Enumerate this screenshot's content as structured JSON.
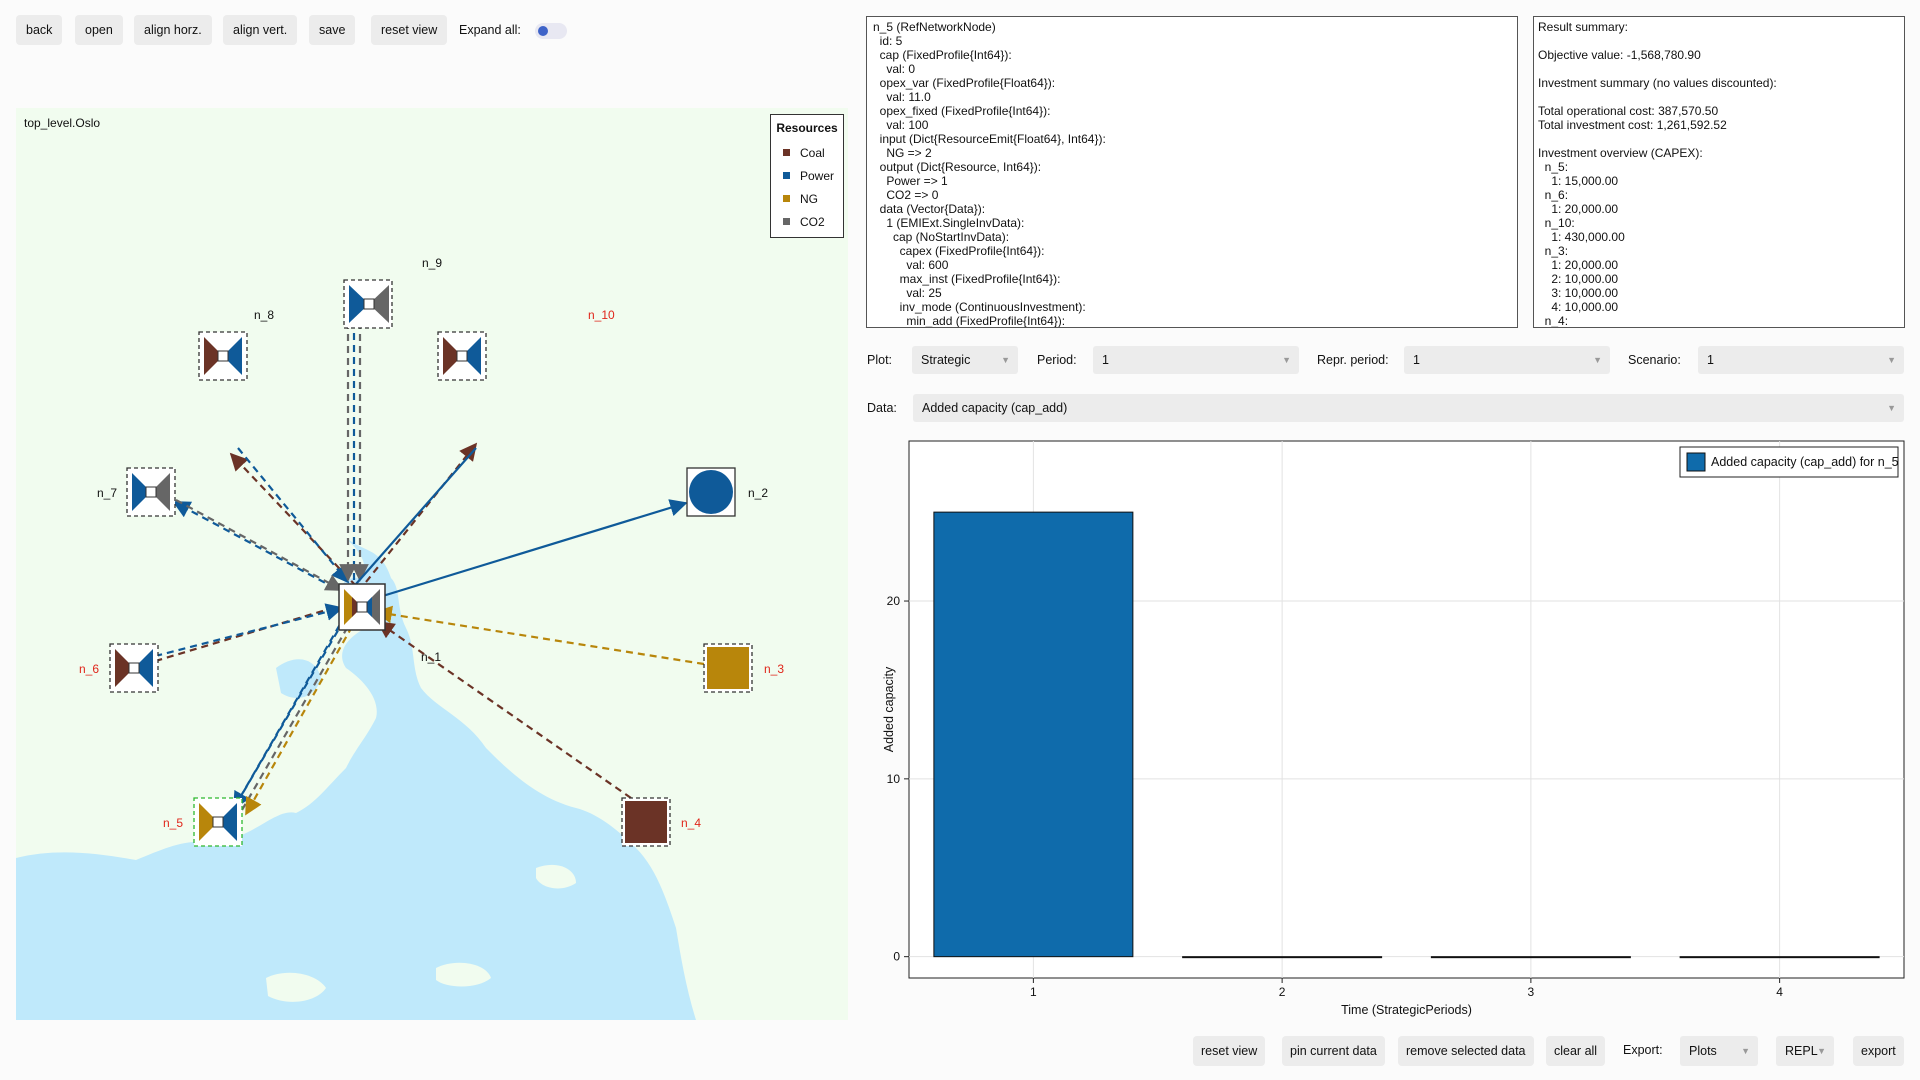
{
  "toolbar": {
    "back": "back",
    "open": "open",
    "align_horz": "align horz.",
    "align_vert": "align vert.",
    "save": "save",
    "reset_view": "reset view",
    "expand_all_label": "Expand all:",
    "expand_all_on": false
  },
  "map": {
    "title": "top_level.Oslo",
    "legend": {
      "title": "Resources",
      "items": [
        {
          "label": "Coal",
          "color": "#6b3326"
        },
        {
          "label": "Power",
          "color": "#0f5a99"
        },
        {
          "label": "NG",
          "color": "#b8860b"
        },
        {
          "label": "CO2",
          "color": "#666666"
        }
      ]
    },
    "nodes": {
      "n_1": "n_1",
      "n_2": "n_2",
      "n_3": "n_3",
      "n_4": "n_4",
      "n_5": "n_5",
      "n_6": "n_6",
      "n_7": "n_7",
      "n_8": "n_8",
      "n_9": "n_9",
      "n_10": "n_10"
    },
    "colors": {
      "coal": "#6b3326",
      "power": "#0f5a99",
      "ng": "#b8860b",
      "co2": "#666666",
      "land": "#f1fcef",
      "water": "#bfe9fb",
      "label_red": "#e0261b"
    }
  },
  "info": {
    "lines": [
      "n_5 (RefNetworkNode)",
      "  id: 5",
      "  cap (FixedProfile{Int64}):",
      "    val: 0",
      "  opex_var (FixedProfile{Float64}):",
      "    val: 11.0",
      "  opex_fixed (FixedProfile{Int64}):",
      "    val: 100",
      "  input (Dict{ResourceEmit{Float64}, Int64}):",
      "    NG => 2",
      "  output (Dict{Resource, Int64}):",
      "    Power => 1",
      "    CO2 => 0",
      "  data (Vector{Data}):",
      "    1 (EMIExt.SingleInvData):",
      "      cap (NoStartInvData):",
      "        capex (FixedProfile{Int64}):",
      "          val: 600",
      "        max_inst (FixedProfile{Int64}):",
      "          val: 25",
      "        inv_mode (ContinuousInvestment):",
      "          min_add (FixedProfile{Int64}):"
    ]
  },
  "summary": {
    "lines": [
      "Result summary:",
      "",
      "Objective value: -1,568,780.90",
      "",
      "Investment summary (no values discounted):",
      "",
      "Total operational cost: 387,570.50",
      "Total investment cost: 1,261,592.52",
      "",
      "Investment overview (CAPEX):",
      "  n_5:",
      "    1: 15,000.00",
      "  n_6:",
      "    1: 20,000.00",
      "  n_10:",
      "    1: 430,000.00",
      "  n_3:",
      "    1: 20,000.00",
      "    2: 10,000.00",
      "    3: 10,000.00",
      "    4: 10,000.00",
      "  n_4:"
    ]
  },
  "controls": {
    "plot_label": "Plot:",
    "plot_value": "Strategic",
    "period_label": "Period:",
    "period_value": "1",
    "repr_label": "Repr. period:",
    "repr_value": "1",
    "scenario_label": "Scenario:",
    "scenario_value": "1",
    "data_label": "Data:",
    "data_value": "Added capacity (cap_add)"
  },
  "chart_data": {
    "type": "bar",
    "categories": [
      "1",
      "2",
      "3",
      "4"
    ],
    "series": [
      {
        "name": "Added capacity (cap_add) for n_5",
        "values": [
          25,
          0,
          0,
          0
        ],
        "color": "#0f6bab"
      }
    ],
    "xlabel": "Time (StrategicPeriods)",
    "ylabel": "Added capacity",
    "yticks": [
      0,
      10,
      20
    ],
    "ylim": [
      -1.2,
      29
    ],
    "grid": true,
    "legend_position": "top-right"
  },
  "bottom": {
    "reset_view": "reset view",
    "pin": "pin current data",
    "remove": "remove selected data",
    "clear": "clear all",
    "export_label": "Export:",
    "export_type": "Plots",
    "export_target": "REPL",
    "export": "export"
  }
}
